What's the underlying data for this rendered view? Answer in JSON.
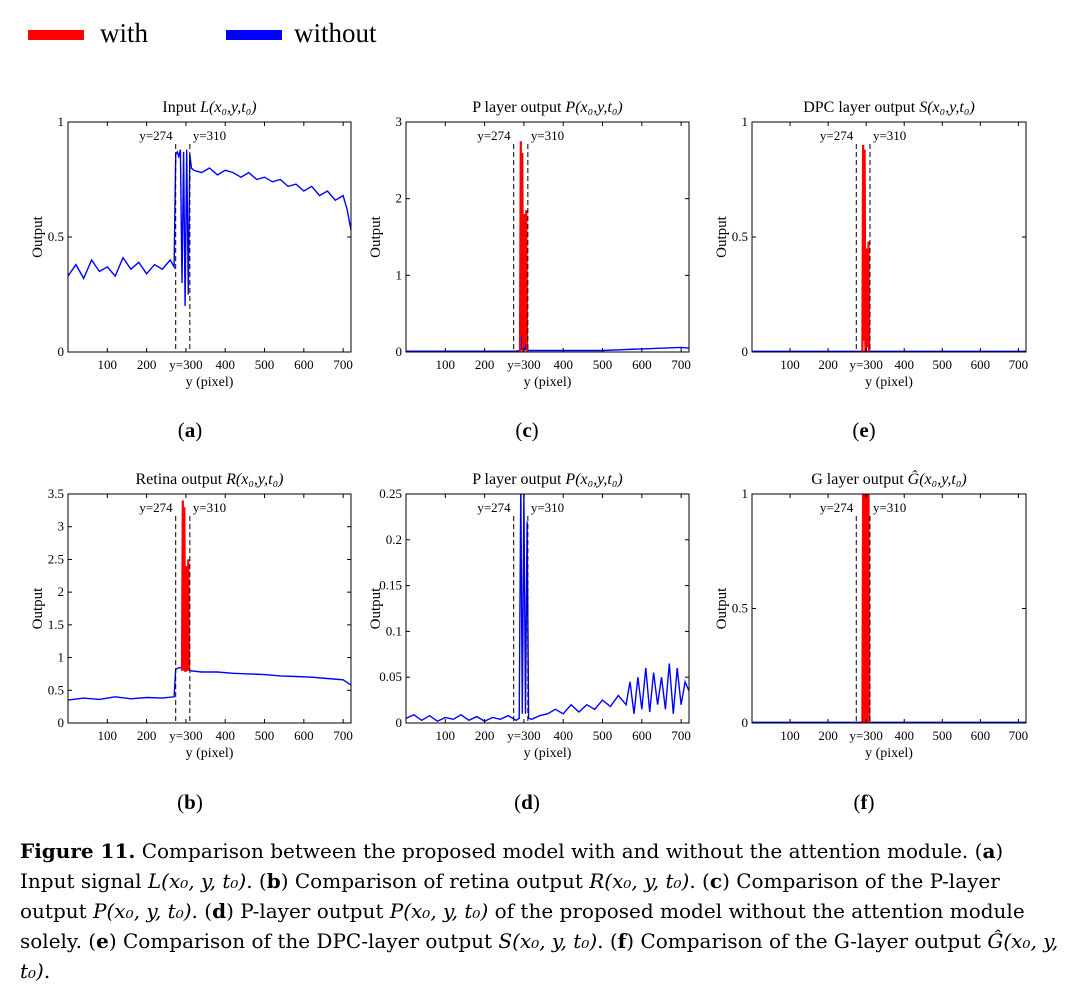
{
  "legend": [
    {
      "label": "with",
      "color": "#ff0000"
    },
    {
      "label": "without",
      "color": "#0000ff"
    }
  ],
  "colors": {
    "with": "#ff0000",
    "without": "#0000ff"
  },
  "chart_data": [
    {
      "id": "a",
      "type": "line",
      "panel_label": "a",
      "title_text": "Input ",
      "title_math": "L(x₀,y,t₀)",
      "xlabel": "y (pixel)",
      "ylabel": "Output",
      "xlim": [
        0,
        720
      ],
      "ylim": [
        0,
        1
      ],
      "xticks": [
        "100",
        "200",
        "y=300",
        "400",
        "500",
        "600",
        "700"
      ],
      "xtick_values": [
        100,
        200,
        300,
        400,
        500,
        600,
        700
      ],
      "yticks": [
        "0",
        "0.5",
        "1"
      ],
      "ytick_values": [
        0,
        0.5,
        1
      ],
      "markers": [
        {
          "x": 274,
          "label": "y=274"
        },
        {
          "x": 310,
          "label": "y=310"
        }
      ],
      "series": [
        {
          "key": "without",
          "x": [
            0,
            20,
            40,
            60,
            80,
            100,
            120,
            140,
            160,
            180,
            200,
            220,
            240,
            260,
            270,
            274,
            278,
            282,
            286,
            290,
            294,
            298,
            302,
            306,
            310,
            314,
            320,
            340,
            360,
            380,
            400,
            420,
            440,
            460,
            480,
            500,
            520,
            540,
            560,
            580,
            600,
            620,
            640,
            660,
            680,
            700,
            710,
            720
          ],
          "y": [
            0.33,
            0.38,
            0.32,
            0.4,
            0.35,
            0.37,
            0.33,
            0.41,
            0.36,
            0.39,
            0.34,
            0.38,
            0.36,
            0.4,
            0.37,
            0.86,
            0.87,
            0.85,
            0.88,
            0.3,
            0.87,
            0.2,
            0.88,
            0.25,
            0.86,
            0.8,
            0.79,
            0.78,
            0.8,
            0.77,
            0.79,
            0.78,
            0.76,
            0.78,
            0.75,
            0.76,
            0.74,
            0.75,
            0.72,
            0.73,
            0.7,
            0.72,
            0.68,
            0.7,
            0.66,
            0.68,
            0.62,
            0.53
          ]
        }
      ]
    },
    {
      "id": "c",
      "type": "line",
      "panel_label": "c",
      "title_text": "P layer output ",
      "title_math": "P(x₀,y,t₀)",
      "xlabel": "y (pixel)",
      "ylabel": "Output",
      "xlim": [
        0,
        720
      ],
      "ylim": [
        0,
        3
      ],
      "xticks": [
        "100",
        "200",
        "y=300",
        "400",
        "500",
        "600",
        "700"
      ],
      "xtick_values": [
        100,
        200,
        300,
        400,
        500,
        600,
        700
      ],
      "yticks": [
        "0",
        "1",
        "2",
        "3"
      ],
      "ytick_values": [
        0,
        1,
        2,
        3
      ],
      "markers": [
        {
          "x": 274,
          "label": "y=274"
        },
        {
          "x": 310,
          "label": "y=310"
        }
      ],
      "series": [
        {
          "key": "with",
          "x": [
            290,
            292,
            294,
            296,
            298,
            300,
            302,
            304,
            306,
            308
          ],
          "y": [
            0,
            2.75,
            0.2,
            2.6,
            0,
            0.1,
            1.8,
            0.1,
            1.85,
            0
          ]
        },
        {
          "key": "without",
          "x": [
            0,
            100,
            200,
            270,
            280,
            290,
            292,
            294,
            296,
            298,
            300,
            302,
            304,
            306,
            310,
            350,
            400,
            500,
            550,
            600,
            650,
            700,
            720
          ],
          "y": [
            0.01,
            0.01,
            0.01,
            0.01,
            0.01,
            0.02,
            0.25,
            0.02,
            0.22,
            0.02,
            0.02,
            0.2,
            0.02,
            0.2,
            0.02,
            0.02,
            0.02,
            0.02,
            0.03,
            0.04,
            0.05,
            0.06,
            0.05
          ]
        }
      ]
    },
    {
      "id": "e",
      "type": "line",
      "panel_label": "e",
      "title_text": "DPC layer output ",
      "title_math": "S(x₀,y,t₀)",
      "xlabel": "y (pixel)",
      "ylabel": "Output",
      "xlim": [
        0,
        720
      ],
      "ylim": [
        0,
        1
      ],
      "xticks": [
        "100",
        "200",
        "y=300",
        "400",
        "500",
        "600",
        "700"
      ],
      "xtick_values": [
        100,
        200,
        300,
        400,
        500,
        600,
        700
      ],
      "yticks": [
        "0",
        "0.5",
        "1"
      ],
      "ytick_values": [
        0,
        0.5,
        1
      ],
      "markers": [
        {
          "x": 274,
          "label": "y=274"
        },
        {
          "x": 310,
          "label": "y=310"
        }
      ],
      "series": [
        {
          "key": "with",
          "x": [
            290,
            292,
            294,
            296,
            298,
            300,
            302,
            304,
            306,
            308
          ],
          "y": [
            0,
            0.9,
            0.05,
            0.88,
            0,
            0.02,
            0.45,
            0.02,
            0.48,
            0
          ]
        },
        {
          "key": "without",
          "x": [
            0,
            720
          ],
          "y": [
            0.003,
            0.003
          ]
        }
      ]
    },
    {
      "id": "b",
      "type": "line",
      "panel_label": "b",
      "title_text": "Retina output ",
      "title_math": "R(x₀,y,t₀)",
      "xlabel": "y (pixel)",
      "ylabel": "Output",
      "xlim": [
        0,
        720
      ],
      "ylim": [
        0,
        3.5
      ],
      "xticks": [
        "100",
        "200",
        "y=300",
        "400",
        "500",
        "600",
        "700"
      ],
      "xtick_values": [
        100,
        200,
        300,
        400,
        500,
        600,
        700
      ],
      "yticks": [
        "0",
        "0.5",
        "1",
        "1.5",
        "2",
        "2.5",
        "3",
        "3.5"
      ],
      "ytick_values": [
        0,
        0.5,
        1,
        1.5,
        2,
        2.5,
        3,
        3.5
      ],
      "markers": [
        {
          "x": 274,
          "label": "y=274"
        },
        {
          "x": 310,
          "label": "y=310"
        }
      ],
      "series": [
        {
          "key": "with",
          "x": [
            290,
            292,
            294,
            296,
            298,
            300,
            302,
            304,
            306,
            308
          ],
          "y": [
            0.8,
            3.4,
            0.8,
            3.3,
            0.8,
            0.8,
            2.4,
            0.8,
            2.5,
            0.8
          ]
        },
        {
          "key": "without",
          "x": [
            0,
            40,
            80,
            120,
            160,
            200,
            240,
            270,
            274,
            280,
            290,
            300,
            310,
            340,
            380,
            420,
            460,
            500,
            540,
            580,
            620,
            660,
            700,
            720
          ],
          "y": [
            0.35,
            0.38,
            0.36,
            0.4,
            0.37,
            0.39,
            0.38,
            0.4,
            0.82,
            0.84,
            0.85,
            0.84,
            0.8,
            0.78,
            0.78,
            0.76,
            0.75,
            0.74,
            0.72,
            0.71,
            0.7,
            0.68,
            0.66,
            0.58
          ]
        }
      ]
    },
    {
      "id": "d",
      "type": "line",
      "panel_label": "d",
      "title_text": "P layer output ",
      "title_math": "P(x₀,y,t₀)",
      "xlabel": "y (pixel)",
      "ylabel": "Output",
      "xlim": [
        0,
        720
      ],
      "ylim": [
        0,
        0.25
      ],
      "xticks": [
        "100",
        "200",
        "y=300",
        "400",
        "500",
        "600",
        "700"
      ],
      "xtick_values": [
        100,
        200,
        300,
        400,
        500,
        600,
        700
      ],
      "yticks": [
        "0",
        "0.05",
        "0.1",
        "0.15",
        "0.2",
        "0.25"
      ],
      "ytick_values": [
        0,
        0.05,
        0.1,
        0.15,
        0.2,
        0.25
      ],
      "markers": [
        {
          "x": 274,
          "label": "y=274"
        },
        {
          "x": 310,
          "label": "y=310"
        }
      ],
      "series": [
        {
          "key": "without",
          "x": [
            0,
            20,
            40,
            60,
            80,
            100,
            120,
            140,
            160,
            180,
            200,
            220,
            240,
            260,
            280,
            288,
            292,
            296,
            300,
            304,
            308,
            312,
            320,
            340,
            360,
            380,
            400,
            420,
            440,
            460,
            480,
            500,
            520,
            540,
            560,
            570,
            580,
            590,
            600,
            610,
            620,
            630,
            640,
            650,
            660,
            670,
            680,
            690,
            700,
            710,
            720
          ],
          "y": [
            0.005,
            0.009,
            0.003,
            0.008,
            0.002,
            0.006,
            0.004,
            0.009,
            0.003,
            0.007,
            0.002,
            0.006,
            0.004,
            0.008,
            0.003,
            0.005,
            0.26,
            0.01,
            0.25,
            0.01,
            0.22,
            0.005,
            0.004,
            0.008,
            0.01,
            0.015,
            0.01,
            0.02,
            0.012,
            0.02,
            0.015,
            0.025,
            0.018,
            0.03,
            0.02,
            0.045,
            0.01,
            0.05,
            0.015,
            0.06,
            0.012,
            0.055,
            0.02,
            0.05,
            0.015,
            0.065,
            0.01,
            0.06,
            0.02,
            0.045,
            0.035
          ]
        }
      ]
    },
    {
      "id": "f",
      "type": "line",
      "panel_label": "f",
      "title_text": "G layer output ",
      "title_math": "Ĝ(x₀,y,t₀)",
      "xlabel": "y (pixel)",
      "ylabel": "Output",
      "xlim": [
        0,
        720
      ],
      "ylim": [
        0,
        1
      ],
      "xticks": [
        "100",
        "200",
        "y=300",
        "400",
        "500",
        "600",
        "700"
      ],
      "xtick_values": [
        100,
        200,
        300,
        400,
        500,
        600,
        700
      ],
      "yticks": [
        "0",
        "0.5",
        "1"
      ],
      "ytick_values": [
        0,
        0.5,
        1
      ],
      "markers": [
        {
          "x": 274,
          "label": "y=274"
        },
        {
          "x": 310,
          "label": "y=310"
        }
      ],
      "series": [
        {
          "key": "with",
          "x": [
            290,
            292,
            294,
            296,
            298,
            300,
            302,
            304,
            306,
            308
          ],
          "y": [
            0,
            1,
            1,
            0,
            1,
            1,
            0,
            1,
            1,
            0
          ]
        },
        {
          "key": "without",
          "x": [
            0,
            720
          ],
          "y": [
            0.003,
            0.003
          ]
        }
      ]
    }
  ],
  "caption": {
    "figure_label": "Figure 11.",
    "parts": [
      {
        "t": "text",
        "v": " Comparison between the proposed model with and without the attention module. ("
      },
      {
        "t": "lbl",
        "v": "a"
      },
      {
        "t": "text",
        "v": ") Input signal "
      },
      {
        "t": "math",
        "v": "L(x₀, y, t₀)"
      },
      {
        "t": "text",
        "v": ". ("
      },
      {
        "t": "lbl",
        "v": "b"
      },
      {
        "t": "text",
        "v": ") Comparison of retina output "
      },
      {
        "t": "math",
        "v": "R(x₀, y, t₀)"
      },
      {
        "t": "text",
        "v": ". ("
      },
      {
        "t": "lbl",
        "v": "c"
      },
      {
        "t": "text",
        "v": ") Comparison of the P-layer output "
      },
      {
        "t": "math",
        "v": "P(x₀, y, t₀)"
      },
      {
        "t": "text",
        "v": ". ("
      },
      {
        "t": "lbl",
        "v": "d"
      },
      {
        "t": "text",
        "v": ") P-layer output "
      },
      {
        "t": "math",
        "v": "P(x₀, y, t₀)"
      },
      {
        "t": "text",
        "v": " of the proposed model without the attention module solely. ("
      },
      {
        "t": "lbl",
        "v": "e"
      },
      {
        "t": "text",
        "v": ") Comparison of the DPC-layer output "
      },
      {
        "t": "math",
        "v": "S(x₀, y, t₀)"
      },
      {
        "t": "text",
        "v": ". ("
      },
      {
        "t": "lbl",
        "v": "f"
      },
      {
        "t": "text",
        "v": ") Comparison of the G-layer output "
      },
      {
        "t": "math",
        "v": "Ĝ(x₀, y, t₀)"
      },
      {
        "t": "text",
        "v": "."
      }
    ]
  }
}
